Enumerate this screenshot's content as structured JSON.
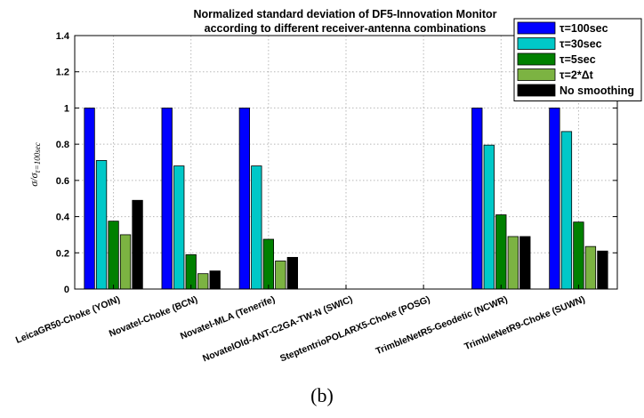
{
  "chart_data": {
    "type": "bar",
    "title_lines": [
      "Normalized standard deviation of DF5-Innovation Monitor",
      "according to different receiver-antenna combinations"
    ],
    "ylabel": "σ/σ τ=100sec",
    "ylim": [
      0,
      1.4
    ],
    "yticks": [
      "0",
      "0.2",
      "0.4",
      "0.6",
      "0.8",
      "1",
      "1.2",
      "1.4"
    ],
    "grid": true,
    "legend_position": "top-right",
    "categories": [
      "LeicaGR50-Choke (YOIN)",
      "Novatel-Choke (BCN)",
      "Novatel-MLA (Tenerife)",
      "NovatelOld-ANT-C2GA-TW-N (SWIC)",
      "SteptentrioPOLARX5-Choke (POSG)",
      "TrimbleNetR5-Geodetic (NCWR)",
      "TrimbleNetR9-Choke (SUWN)"
    ],
    "series": [
      {
        "name": "τ=100sec",
        "color": "#0000ff",
        "values": [
          1.0,
          1.0,
          1.0,
          0,
          0,
          1.0,
          1.0
        ]
      },
      {
        "name": "τ=30sec",
        "color": "#00c8c8",
        "values": [
          0.71,
          0.68,
          0.68,
          0,
          0,
          0.795,
          0.87
        ]
      },
      {
        "name": "τ=5sec",
        "color": "#008000",
        "values": [
          0.375,
          0.19,
          0.275,
          0,
          0,
          0.41,
          0.37
        ]
      },
      {
        "name": "τ=2*Δt",
        "color": "#7cb342",
        "values": [
          0.3,
          0.085,
          0.155,
          0,
          0,
          0.29,
          0.235
        ]
      },
      {
        "name": "No smoothing",
        "color": "#000000",
        "values": [
          0.49,
          0.1,
          0.175,
          0,
          0,
          0.29,
          0.21
        ]
      }
    ]
  },
  "caption": "(b)"
}
